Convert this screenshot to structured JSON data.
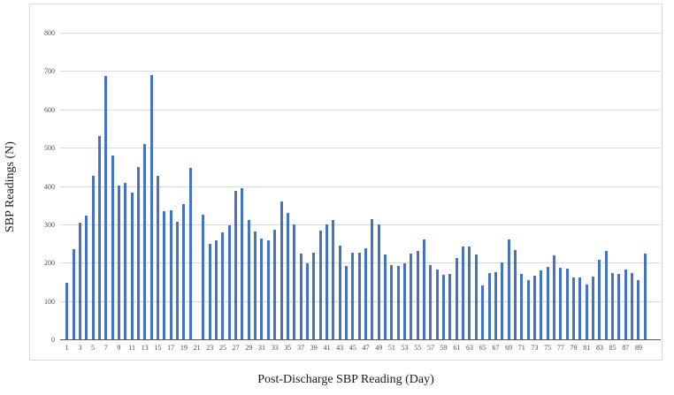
{
  "chart_data": {
    "type": "bar",
    "title": "",
    "ylabel": "SBP Readings (N)",
    "xlabel": "Post-Discharge SBP Reading (Day)",
    "ylim": [
      0,
      800
    ],
    "yticks": [
      0,
      100,
      200,
      300,
      400,
      500,
      600,
      700,
      800
    ],
    "xtick_labels": [
      1,
      3,
      5,
      7,
      9,
      11,
      13,
      15,
      17,
      19,
      21,
      23,
      25,
      27,
      29,
      31,
      33,
      35,
      37,
      39,
      41,
      43,
      45,
      47,
      49,
      51,
      53,
      55,
      57,
      59,
      61,
      63,
      65,
      67,
      69,
      71,
      73,
      75,
      77,
      79,
      81,
      83,
      85,
      87,
      89
    ],
    "x": [
      1,
      2,
      3,
      4,
      5,
      6,
      7,
      8,
      9,
      10,
      11,
      12,
      13,
      14,
      15,
      16,
      17,
      18,
      19,
      20,
      21,
      22,
      23,
      24,
      25,
      26,
      27,
      28,
      29,
      30,
      31,
      32,
      33,
      34,
      35,
      36,
      37,
      38,
      39,
      40,
      41,
      42,
      43,
      44,
      45,
      46,
      47,
      48,
      49,
      50,
      51,
      52,
      53,
      54,
      55,
      56,
      57,
      58,
      59,
      60,
      61,
      62,
      63,
      64,
      65,
      66,
      67,
      68,
      69,
      70,
      71,
      72,
      73,
      74,
      75,
      76,
      77,
      78,
      79,
      80,
      81,
      82,
      83,
      84,
      85,
      86,
      87,
      88,
      89,
      90
    ],
    "values": [
      150,
      237,
      307,
      326,
      430,
      533,
      689,
      483,
      403,
      411,
      384,
      453,
      512,
      691,
      430,
      337,
      339,
      310,
      356,
      449,
      null,
      328,
      252,
      260,
      281,
      300,
      389,
      397,
      313,
      284,
      265,
      260,
      289,
      362,
      331,
      301,
      227,
      201,
      229,
      286,
      303,
      313,
      246,
      194,
      228,
      228,
      240,
      315,
      303,
      223,
      196,
      194,
      200,
      225,
      234,
      264,
      196,
      184,
      171,
      174,
      215,
      244,
      244,
      223,
      142,
      175,
      177,
      202,
      264,
      236,
      174,
      156,
      169,
      182,
      191,
      221,
      188,
      187,
      163,
      164,
      146,
      167,
      210,
      234,
      175,
      173,
      184,
      175,
      156,
      225
    ],
    "grid": true,
    "legend": false,
    "bar_color": "#4472c4",
    "gridline_color": "#d9d9d9",
    "axis_line_color": "#595959",
    "tick_label_color": "#4d4d4d"
  }
}
